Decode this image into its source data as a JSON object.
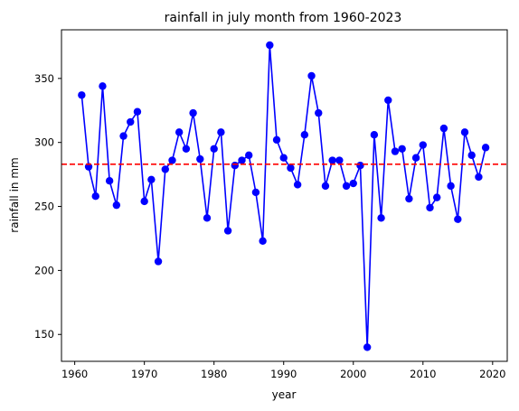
{
  "chart_data": {
    "type": "line",
    "title": "rainfall in july month from 1960-2023",
    "xlabel": "year",
    "ylabel": "rainfall in mm",
    "xlim": [
      1958.1,
      2022.1
    ],
    "ylim": [
      129,
      388
    ],
    "xticks": [
      1960,
      1970,
      1980,
      1990,
      2000,
      2010,
      2020
    ],
    "yticks": [
      150,
      200,
      250,
      300,
      350
    ],
    "grid": false,
    "legend": "none",
    "series": [
      {
        "color": "#0000ff",
        "marker": "circle",
        "x": [
          1961,
          1962,
          1963,
          1964,
          1965,
          1966,
          1967,
          1968,
          1969,
          1970,
          1971,
          1972,
          1973,
          1974,
          1975,
          1976,
          1977,
          1978,
          1979,
          1980,
          1981,
          1982,
          1983,
          1984,
          1985,
          1986,
          1987,
          1988,
          1989,
          1990,
          1991,
          1992,
          1993,
          1994,
          1995,
          1996,
          1997,
          1998,
          1999,
          2000,
          2001,
          2002,
          2003,
          2004,
          2005,
          2006,
          2007,
          2008,
          2009,
          2010,
          2011,
          2012,
          2013,
          2014,
          2015,
          2016,
          2017,
          2018,
          2019
        ],
        "y": [
          337,
          281,
          258,
          344,
          270,
          251,
          305,
          316,
          324,
          254,
          271,
          207,
          279,
          286,
          308,
          295,
          323,
          287,
          241,
          295,
          308,
          231,
          282,
          286,
          290,
          261,
          223,
          376,
          302,
          288,
          280,
          267,
          306,
          352,
          323,
          266,
          286,
          286,
          266,
          268,
          282,
          140,
          306,
          241,
          333,
          293,
          295,
          256,
          288,
          298,
          249,
          257,
          311,
          266,
          240,
          308,
          290,
          273,
          296
        ]
      }
    ],
    "reference_line": {
      "orientation": "horizontal",
      "y": 283,
      "color": "#ff0000",
      "style": "dashed"
    }
  }
}
